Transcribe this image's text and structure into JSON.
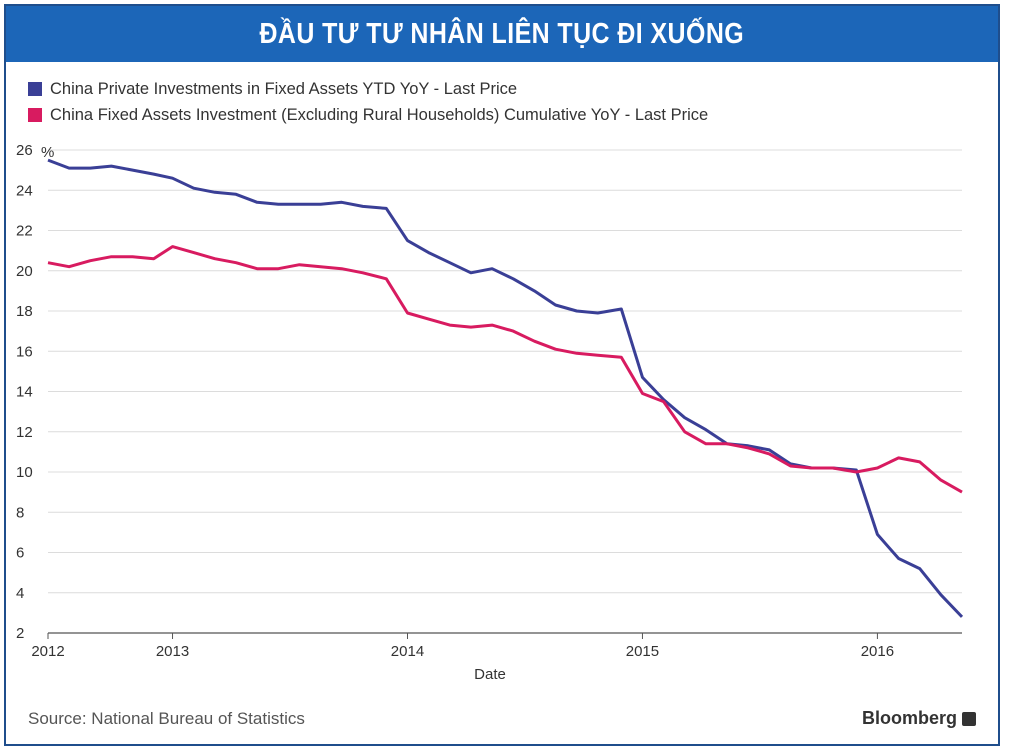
{
  "brand": "Bloomberg",
  "source": "Source: National Bureau of Statistics",
  "chart_data": {
    "type": "line",
    "title": "ĐẦU TƯ TƯ NHÂN LIÊN TỤC ĐI XUỐNG",
    "xlabel": "Date",
    "ylabel": "%",
    "ylim": [
      2,
      26
    ],
    "xlim": [
      2012.0,
      2016.35
    ],
    "yticks": [
      2,
      4,
      6,
      8,
      10,
      12,
      14,
      16,
      18,
      20,
      22,
      24,
      26
    ],
    "xticks": [
      {
        "label": "2012",
        "value": 2012.0
      },
      {
        "label": "2013",
        "value": 2012.53
      },
      {
        "label": "2014",
        "value": 2013.53
      },
      {
        "label": "2015",
        "value": 2014.53
      },
      {
        "label": "2016",
        "value": 2015.53
      }
    ],
    "series": [
      {
        "name": "China Private Investments in Fixed Assets YTD YoY - Last Price",
        "color": "#3a3f96",
        "points": [
          [
            2012.0,
            25.5
          ],
          [
            2012.09,
            25.1
          ],
          [
            2012.18,
            25.1
          ],
          [
            2012.27,
            25.2
          ],
          [
            2012.36,
            25.0
          ],
          [
            2012.45,
            24.8
          ],
          [
            2012.53,
            24.6
          ],
          [
            2012.62,
            24.1
          ],
          [
            2012.71,
            23.9
          ],
          [
            2012.8,
            23.8
          ],
          [
            2012.89,
            23.4
          ],
          [
            2012.98,
            23.3
          ],
          [
            2013.07,
            23.3
          ],
          [
            2013.16,
            23.3
          ],
          [
            2013.25,
            23.4
          ],
          [
            2013.34,
            23.2
          ],
          [
            2013.44,
            23.1
          ],
          [
            2013.53,
            21.5
          ],
          [
            2013.62,
            20.9
          ],
          [
            2013.71,
            20.4
          ],
          [
            2013.8,
            19.9
          ],
          [
            2013.89,
            20.1
          ],
          [
            2013.98,
            19.6
          ],
          [
            2014.07,
            19.0
          ],
          [
            2014.16,
            18.3
          ],
          [
            2014.25,
            18.0
          ],
          [
            2014.34,
            17.9
          ],
          [
            2014.44,
            18.1
          ],
          [
            2014.53,
            14.7
          ],
          [
            2014.62,
            13.6
          ],
          [
            2014.71,
            12.7
          ],
          [
            2014.8,
            12.1
          ],
          [
            2014.89,
            11.4
          ],
          [
            2014.98,
            11.3
          ],
          [
            2015.07,
            11.1
          ],
          [
            2015.16,
            10.4
          ],
          [
            2015.25,
            10.2
          ],
          [
            2015.34,
            10.2
          ],
          [
            2015.44,
            10.1
          ],
          [
            2015.53,
            6.9
          ],
          [
            2015.62,
            5.7
          ],
          [
            2015.71,
            5.2
          ],
          [
            2015.8,
            3.9
          ],
          [
            2015.89,
            2.8
          ]
        ]
      },
      {
        "name": "China Fixed Assets Investment (Excluding Rural Households) Cumulative YoY - Last Price",
        "color": "#d81b60",
        "points": [
          [
            2012.0,
            20.4
          ],
          [
            2012.09,
            20.2
          ],
          [
            2012.18,
            20.5
          ],
          [
            2012.27,
            20.7
          ],
          [
            2012.36,
            20.7
          ],
          [
            2012.45,
            20.6
          ],
          [
            2012.53,
            21.2
          ],
          [
            2012.62,
            20.9
          ],
          [
            2012.71,
            20.6
          ],
          [
            2012.8,
            20.4
          ],
          [
            2012.89,
            20.1
          ],
          [
            2012.98,
            20.1
          ],
          [
            2013.07,
            20.3
          ],
          [
            2013.16,
            20.2
          ],
          [
            2013.25,
            20.1
          ],
          [
            2013.34,
            19.9
          ],
          [
            2013.44,
            19.6
          ],
          [
            2013.53,
            17.9
          ],
          [
            2013.62,
            17.6
          ],
          [
            2013.71,
            17.3
          ],
          [
            2013.8,
            17.2
          ],
          [
            2013.89,
            17.3
          ],
          [
            2013.98,
            17.0
          ],
          [
            2014.07,
            16.5
          ],
          [
            2014.16,
            16.1
          ],
          [
            2014.25,
            15.9
          ],
          [
            2014.34,
            15.8
          ],
          [
            2014.44,
            15.7
          ],
          [
            2014.53,
            13.9
          ],
          [
            2014.62,
            13.5
          ],
          [
            2014.71,
            12.0
          ],
          [
            2014.8,
            11.4
          ],
          [
            2014.89,
            11.4
          ],
          [
            2014.98,
            11.2
          ],
          [
            2015.07,
            10.9
          ],
          [
            2015.16,
            10.3
          ],
          [
            2015.25,
            10.2
          ],
          [
            2015.34,
            10.2
          ],
          [
            2015.44,
            10.0
          ],
          [
            2015.53,
            10.2
          ],
          [
            2015.62,
            10.7
          ],
          [
            2015.71,
            10.5
          ],
          [
            2015.8,
            9.6
          ],
          [
            2015.89,
            9.0
          ]
        ]
      }
    ]
  }
}
